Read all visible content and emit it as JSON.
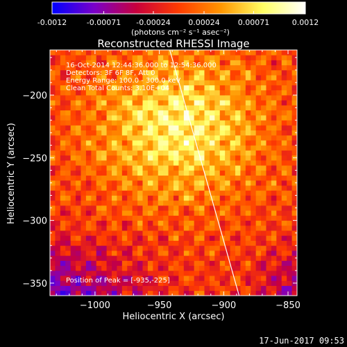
{
  "colorbar": {
    "tick_labels": [
      "-0.0012",
      "-0.00071",
      "-0.00024",
      "0.00024",
      "0.00071",
      "0.0012"
    ],
    "tick_values": [
      -0.0012,
      -0.00071,
      -0.00024,
      0.00024,
      0.00071,
      0.0012
    ],
    "range": [
      -0.0012,
      0.0012
    ],
    "units_label": "(photons cm⁻² s⁻¹ asec⁻²)",
    "colormap_stops": [
      "#0000ff",
      "#7a00c8",
      "#c8003c",
      "#ff3c00",
      "#ff9600",
      "#ffff64",
      "#ffffff"
    ]
  },
  "chart_data": {
    "type": "heatmap",
    "title": "Reconstructed RHESSI Image",
    "xlabel": "Heliocentric X (arcsec)",
    "ylabel": "Heliocentric Y (arcsec)",
    "xlim": [
      -1035,
      -843
    ],
    "ylim": [
      -360,
      -164
    ],
    "x_ticks": [
      -1000,
      -950,
      -900,
      -850
    ],
    "x_tick_labels": [
      "−1000",
      "−950",
      "−900",
      "−850"
    ],
    "y_ticks": [
      -200,
      -250,
      -300,
      -350
    ],
    "y_tick_labels": [
      "−200",
      "−250",
      "−300",
      "−350"
    ],
    "peak": {
      "x": -935,
      "y": -225
    },
    "limb_line": [
      [
        -943,
        -160
      ],
      [
        -888,
        -360
      ]
    ],
    "annotations": {
      "time_range": "16-Oct-2014 12:44:36.000 to 12:54:36.000",
      "detectors": "Detectors: 3F 6F 8F, Att 0",
      "energy_range": "Energy Range: 100.0 - 300.0 keV",
      "algorithm": "Clean     Total Counts: 3.10E+04",
      "peak_position": "Position of Peak = [-935,-225]"
    }
  },
  "footer": {
    "timestamp": "17-Jun-2017 09:53"
  }
}
